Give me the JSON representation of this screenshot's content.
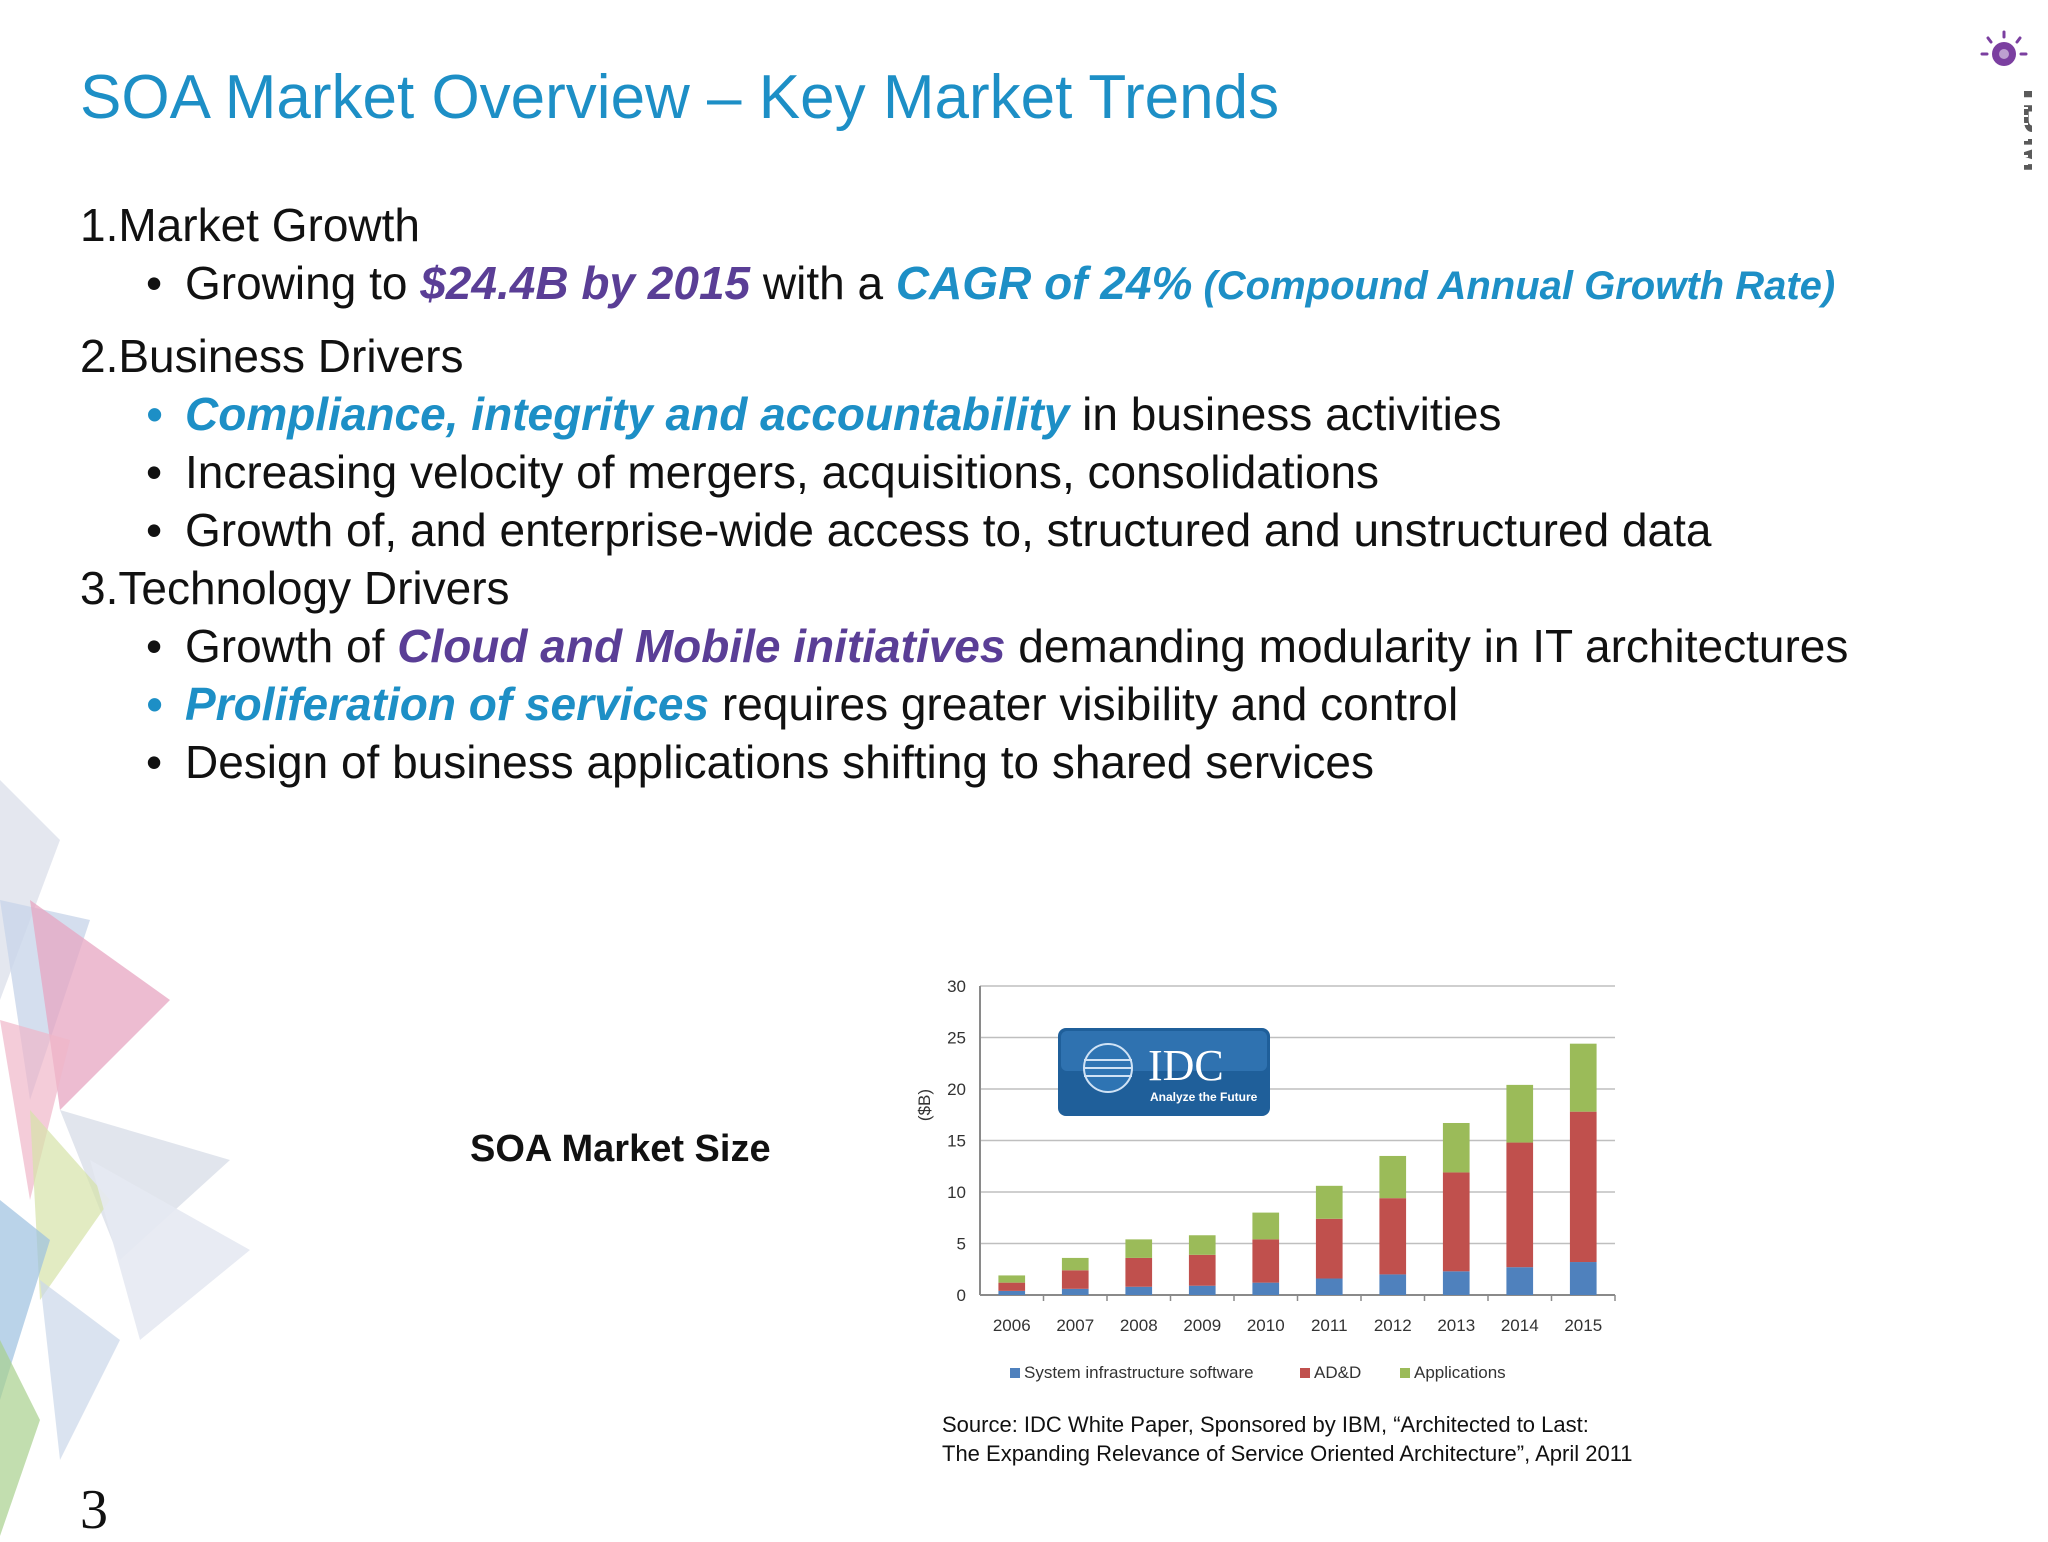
{
  "title": "SOA Market Overview – Key Market Trends",
  "logo": {
    "name": "IBM",
    "text": "IBM"
  },
  "sections": [
    {
      "heading": "1.Market Growth",
      "bullets": [
        {
          "parts": [
            "Growing to ",
            "$24.4B by 2015",
            " with a ",
            "CAGR of 24%",
            " (Compound Annual Growth Rate)"
          ]
        }
      ]
    },
    {
      "heading": "2.Business Drivers",
      "bullets": [
        {
          "parts": [
            "Compliance, integrity and accountability",
            " in business activities"
          ]
        },
        {
          "parts": [
            "Increasing velocity of mergers, acquisitions, consolidations"
          ]
        },
        {
          "parts": [
            "Growth of, and enterprise-wide access to, structured and unstructured data"
          ]
        }
      ]
    },
    {
      "heading": "3.Technology Drivers",
      "bullets": [
        {
          "parts": [
            "Growth of ",
            "Cloud and Mobile initiatives",
            " demanding modularity in IT architectures"
          ]
        },
        {
          "parts": [
            "Proliferation of services",
            " requires greater visibility and control"
          ]
        },
        {
          "parts": [
            "Design of business applications shifting to shared services"
          ]
        }
      ]
    }
  ],
  "bullet_char": "•",
  "chart_label": "SOA Market Size",
  "source_lines": [
    "Source: IDC White Paper, Sponsored by IBM, “Architected to Last:",
    "The Expanding Relevance of Service Oriented Architecture”, April 2011"
  ],
  "page_number": "3",
  "idc_badge": {
    "name": "IDC",
    "tagline": "Analyze the Future"
  },
  "colors": {
    "accent": "#1d8fc6",
    "purple": "#5a3e96"
  },
  "chart_data": {
    "type": "bar",
    "stacked": true,
    "categories": [
      "2006",
      "2007",
      "2008",
      "2009",
      "2010",
      "2011",
      "2012",
      "2013",
      "2014",
      "2015"
    ],
    "series": [
      {
        "name": "System infrastructure software",
        "color": "#4f81bd",
        "values": [
          0.4,
          0.6,
          0.8,
          0.9,
          1.2,
          1.6,
          2.0,
          2.3,
          2.7,
          3.2
        ]
      },
      {
        "name": "AD&D",
        "color": "#c0504d",
        "values": [
          0.8,
          1.8,
          2.8,
          3.0,
          4.2,
          5.8,
          7.4,
          9.6,
          12.1,
          14.6
        ]
      },
      {
        "name": "Applications",
        "color": "#9bbb59",
        "values": [
          0.7,
          1.2,
          1.8,
          1.9,
          2.6,
          3.2,
          4.1,
          4.8,
          5.6,
          6.6
        ]
      }
    ],
    "ylabel": "($B)",
    "ylim": [
      0,
      30
    ],
    "yticks": [
      0,
      5,
      10,
      15,
      20,
      25,
      30
    ],
    "grid": true,
    "legend": "bottom"
  }
}
